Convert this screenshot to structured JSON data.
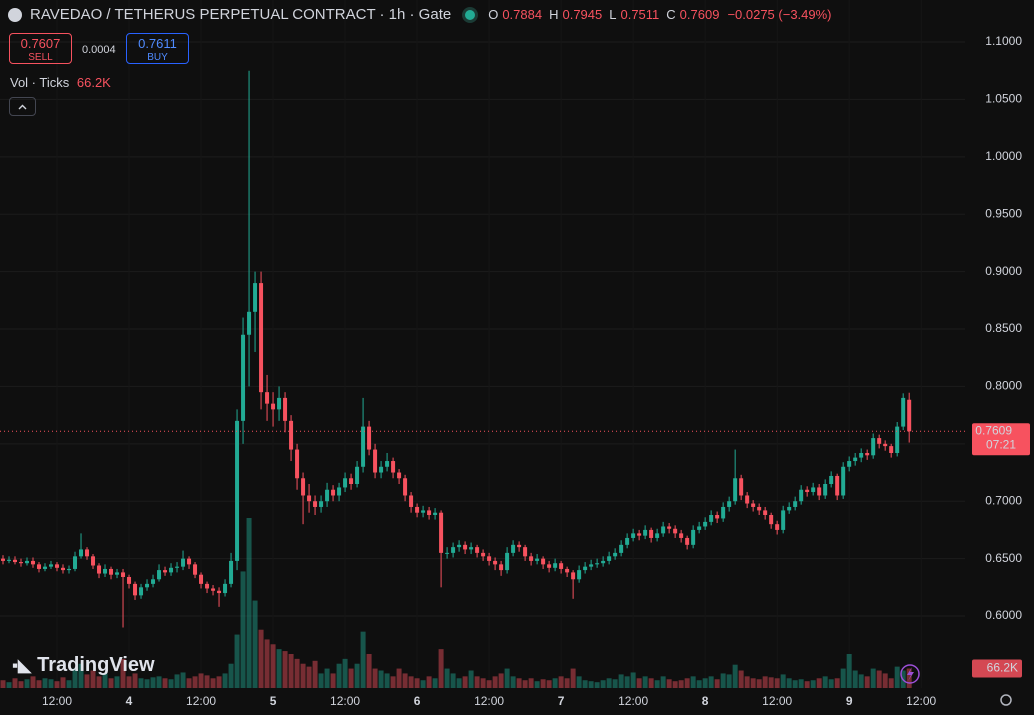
{
  "header": {
    "title": "RAVEDAO / TETHERUS PERPETUAL CONTRACT · 1h · Gate",
    "ohlc": [
      {
        "key": "O",
        "value": 0.7884
      },
      {
        "key": "H",
        "value": 0.7945
      },
      {
        "key": "L",
        "value": 0.7511
      },
      {
        "key": "C",
        "value": 0.7609
      }
    ],
    "change": "−0.0275 (−3.49%)",
    "sell": {
      "price": 0.7607,
      "label": "SELL"
    },
    "spread": 0.0004,
    "buy": {
      "price": 0.7611,
      "label": "BUY"
    },
    "volume_legend": {
      "label": "Vol · Ticks",
      "value": "66.2K"
    },
    "last_price_badge": {
      "price": 0.7609,
      "countdown": "07:21"
    },
    "volume_badge": "66.2K",
    "logo": "TradingView"
  },
  "chart_data": {
    "type": "candlestick",
    "up_color": "#22ab94",
    "down_color": "#f7525f",
    "grid": true,
    "x": [
      0,
      1,
      2,
      3,
      4,
      5,
      6,
      7,
      8,
      9,
      10,
      11,
      12,
      13,
      14,
      15,
      16,
      17,
      18,
      19,
      20,
      21,
      22,
      23,
      24,
      25,
      26,
      27,
      28,
      29,
      30,
      31,
      32,
      33,
      34,
      35,
      36,
      37,
      38,
      39,
      40,
      41,
      42,
      43,
      44,
      45,
      46,
      47,
      48,
      49,
      50,
      51,
      52,
      53,
      54,
      55,
      56,
      57,
      58,
      59,
      60,
      61,
      62,
      63,
      64,
      65,
      66,
      67,
      68,
      69,
      70,
      71,
      72,
      73,
      74,
      75,
      76,
      77,
      78,
      79,
      80,
      81,
      82,
      83,
      84,
      85,
      86,
      87,
      88,
      89,
      90,
      91,
      92,
      93,
      94,
      95,
      96,
      97,
      98,
      99,
      100,
      101,
      102,
      103,
      104,
      105,
      106,
      107,
      108,
      109,
      110,
      111,
      112,
      113,
      114,
      115,
      116,
      117,
      118,
      119,
      120,
      121,
      122,
      123,
      124,
      125,
      126,
      127,
      128,
      129,
      130,
      131,
      132,
      133,
      134,
      135,
      136,
      137,
      138,
      139,
      140,
      141,
      142,
      143,
      144,
      145,
      146,
      147,
      148,
      149,
      150,
      151
    ],
    "open": [
      0.65,
      0.648,
      0.649,
      0.647,
      0.646,
      0.648,
      0.645,
      0.641,
      0.643,
      0.645,
      0.642,
      0.64,
      0.641,
      0.652,
      0.658,
      0.652,
      0.644,
      0.637,
      0.641,
      0.636,
      0.638,
      0.634,
      0.628,
      0.618,
      0.625,
      0.628,
      0.632,
      0.64,
      0.638,
      0.642,
      0.643,
      0.65,
      0.645,
      0.636,
      0.628,
      0.624,
      0.622,
      0.62,
      0.628,
      0.648,
      0.77,
      0.845,
      0.865,
      0.89,
      0.795,
      0.785,
      0.78,
      0.79,
      0.77,
      0.745,
      0.72,
      0.705,
      0.7,
      0.695,
      0.7,
      0.71,
      0.705,
      0.712,
      0.72,
      0.715,
      0.73,
      0.765,
      0.745,
      0.725,
      0.73,
      0.735,
      0.725,
      0.72,
      0.705,
      0.695,
      0.69,
      0.692,
      0.688,
      0.69,
      0.655,
      0.655,
      0.66,
      0.662,
      0.658,
      0.66,
      0.655,
      0.652,
      0.648,
      0.645,
      0.64,
      0.655,
      0.662,
      0.66,
      0.652,
      0.648,
      0.65,
      0.645,
      0.642,
      0.646,
      0.641,
      0.638,
      0.632,
      0.64,
      0.643,
      0.645,
      0.646,
      0.648,
      0.652,
      0.655,
      0.662,
      0.668,
      0.672,
      0.67,
      0.675,
      0.668,
      0.672,
      0.678,
      0.676,
      0.672,
      0.668,
      0.662,
      0.675,
      0.678,
      0.682,
      0.688,
      0.685,
      0.695,
      0.7,
      0.72,
      0.705,
      0.698,
      0.695,
      0.692,
      0.688,
      0.68,
      0.675,
      0.692,
      0.695,
      0.7,
      0.71,
      0.708,
      0.712,
      0.705,
      0.715,
      0.722,
      0.705,
      0.73,
      0.735,
      0.738,
      0.742,
      0.74,
      0.755,
      0.75,
      0.748,
      0.742,
      0.765,
      0.7884
    ],
    "high": [
      0.653,
      0.652,
      0.652,
      0.65,
      0.651,
      0.651,
      0.647,
      0.646,
      0.648,
      0.647,
      0.645,
      0.644,
      0.656,
      0.672,
      0.66,
      0.654,
      0.646,
      0.645,
      0.643,
      0.641,
      0.641,
      0.636,
      0.63,
      0.628,
      0.632,
      0.636,
      0.645,
      0.643,
      0.646,
      0.647,
      0.657,
      0.652,
      0.647,
      0.638,
      0.63,
      0.627,
      0.625,
      0.632,
      0.655,
      0.78,
      0.86,
      1.075,
      0.9,
      0.9,
      0.81,
      0.795,
      0.8,
      0.795,
      0.775,
      0.75,
      0.725,
      0.715,
      0.705,
      0.705,
      0.716,
      0.714,
      0.716,
      0.725,
      0.724,
      0.735,
      0.79,
      0.77,
      0.75,
      0.735,
      0.742,
      0.738,
      0.728,
      0.723,
      0.708,
      0.698,
      0.696,
      0.695,
      0.694,
      0.692,
      0.66,
      0.664,
      0.666,
      0.665,
      0.664,
      0.662,
      0.658,
      0.655,
      0.651,
      0.648,
      0.66,
      0.666,
      0.665,
      0.662,
      0.655,
      0.654,
      0.652,
      0.648,
      0.65,
      0.648,
      0.643,
      0.64,
      0.644,
      0.647,
      0.649,
      0.65,
      0.652,
      0.656,
      0.659,
      0.666,
      0.672,
      0.676,
      0.675,
      0.679,
      0.677,
      0.676,
      0.682,
      0.681,
      0.679,
      0.675,
      0.67,
      0.679,
      0.682,
      0.686,
      0.692,
      0.691,
      0.699,
      0.704,
      0.745,
      0.723,
      0.708,
      0.701,
      0.698,
      0.695,
      0.69,
      0.683,
      0.696,
      0.699,
      0.704,
      0.714,
      0.713,
      0.716,
      0.715,
      0.719,
      0.726,
      0.724,
      0.734,
      0.739,
      0.742,
      0.746,
      0.745,
      0.759,
      0.758,
      0.753,
      0.75,
      0.769,
      0.794,
      0.7945
    ],
    "low": [
      0.645,
      0.646,
      0.645,
      0.643,
      0.644,
      0.642,
      0.638,
      0.639,
      0.641,
      0.639,
      0.637,
      0.637,
      0.639,
      0.65,
      0.649,
      0.641,
      0.633,
      0.634,
      0.632,
      0.633,
      0.59,
      0.624,
      0.614,
      0.615,
      0.622,
      0.625,
      0.63,
      0.635,
      0.635,
      0.638,
      0.64,
      0.641,
      0.633,
      0.624,
      0.62,
      0.618,
      0.608,
      0.617,
      0.625,
      0.64,
      0.75,
      0.8,
      0.83,
      0.78,
      0.77,
      0.765,
      0.77,
      0.76,
      0.735,
      0.71,
      0.68,
      0.69,
      0.688,
      0.69,
      0.695,
      0.7,
      0.7,
      0.708,
      0.71,
      0.712,
      0.725,
      0.74,
      0.72,
      0.72,
      0.726,
      0.72,
      0.715,
      0.7,
      0.69,
      0.686,
      0.686,
      0.684,
      0.684,
      0.625,
      0.65,
      0.651,
      0.656,
      0.654,
      0.654,
      0.651,
      0.648,
      0.644,
      0.64,
      0.635,
      0.637,
      0.652,
      0.656,
      0.648,
      0.644,
      0.645,
      0.641,
      0.638,
      0.639,
      0.637,
      0.634,
      0.615,
      0.629,
      0.637,
      0.64,
      0.642,
      0.643,
      0.645,
      0.649,
      0.652,
      0.659,
      0.665,
      0.666,
      0.667,
      0.664,
      0.665,
      0.669,
      0.672,
      0.668,
      0.664,
      0.658,
      0.659,
      0.672,
      0.675,
      0.679,
      0.681,
      0.682,
      0.691,
      0.697,
      0.701,
      0.694,
      0.691,
      0.688,
      0.684,
      0.676,
      0.671,
      0.672,
      0.689,
      0.692,
      0.697,
      0.704,
      0.705,
      0.701,
      0.702,
      0.712,
      0.701,
      0.702,
      0.726,
      0.731,
      0.734,
      0.736,
      0.737,
      0.746,
      0.744,
      0.738,
      0.739,
      0.762,
      0.7511
    ],
    "close": [
      0.648,
      0.649,
      0.647,
      0.646,
      0.648,
      0.645,
      0.641,
      0.643,
      0.645,
      0.642,
      0.64,
      0.641,
      0.652,
      0.658,
      0.652,
      0.644,
      0.637,
      0.641,
      0.636,
      0.638,
      0.634,
      0.628,
      0.618,
      0.625,
      0.628,
      0.632,
      0.64,
      0.638,
      0.642,
      0.643,
      0.65,
      0.645,
      0.636,
      0.628,
      0.624,
      0.622,
      0.62,
      0.628,
      0.648,
      0.77,
      0.845,
      0.865,
      0.89,
      0.795,
      0.785,
      0.78,
      0.79,
      0.77,
      0.745,
      0.72,
      0.705,
      0.7,
      0.695,
      0.7,
      0.71,
      0.705,
      0.712,
      0.72,
      0.715,
      0.73,
      0.765,
      0.745,
      0.725,
      0.73,
      0.735,
      0.725,
      0.72,
      0.705,
      0.695,
      0.69,
      0.692,
      0.688,
      0.69,
      0.655,
      0.655,
      0.66,
      0.662,
      0.658,
      0.66,
      0.655,
      0.652,
      0.648,
      0.645,
      0.64,
      0.655,
      0.662,
      0.66,
      0.652,
      0.648,
      0.65,
      0.645,
      0.642,
      0.646,
      0.641,
      0.638,
      0.632,
      0.64,
      0.643,
      0.645,
      0.646,
      0.648,
      0.652,
      0.655,
      0.662,
      0.668,
      0.672,
      0.67,
      0.675,
      0.668,
      0.672,
      0.678,
      0.676,
      0.672,
      0.668,
      0.662,
      0.675,
      0.678,
      0.682,
      0.688,
      0.685,
      0.695,
      0.7,
      0.72,
      0.705,
      0.698,
      0.695,
      0.692,
      0.688,
      0.68,
      0.675,
      0.692,
      0.695,
      0.7,
      0.71,
      0.708,
      0.712,
      0.705,
      0.715,
      0.722,
      0.705,
      0.73,
      0.735,
      0.738,
      0.742,
      0.74,
      0.755,
      0.75,
      0.748,
      0.742,
      0.765,
      0.79,
      0.7609
    ],
    "volume": [
      26400,
      19800,
      33000,
      23100,
      29700,
      39600,
      26400,
      33000,
      29700,
      23100,
      36300,
      26400,
      66000,
      82500,
      46200,
      59400,
      39600,
      49500,
      33000,
      39600,
      99000,
      39600,
      49500,
      33000,
      29700,
      36300,
      39600,
      33000,
      29700,
      46200,
      52800,
      33000,
      39600,
      49500,
      42900,
      33000,
      39600,
      49500,
      82500,
      181500,
      396000,
      577500,
      297000,
      198000,
      165000,
      148500,
      132000,
      125400,
      115500,
      99000,
      82500,
      72600,
      92400,
      49500,
      66000,
      49500,
      82500,
      99000,
      66000,
      82500,
      191400,
      115500,
      66000,
      59400,
      49500,
      39600,
      66000,
      49500,
      39600,
      33000,
      26400,
      39600,
      33000,
      132000,
      66000,
      49500,
      33000,
      39600,
      59400,
      39600,
      33000,
      26400,
      39600,
      49500,
      66000,
      39600,
      33000,
      26400,
      33000,
      23100,
      29700,
      26400,
      33000,
      39600,
      33000,
      66000,
      39600,
      26400,
      23100,
      19800,
      26400,
      33000,
      29700,
      46200,
      39600,
      52800,
      33000,
      39600,
      33000,
      26400,
      39600,
      29700,
      23100,
      26400,
      33000,
      39600,
      26400,
      33000,
      39600,
      29700,
      49500,
      46200,
      79200,
      59400,
      39600,
      33000,
      29700,
      39600,
      36300,
      33000,
      46200,
      33000,
      26400,
      29700,
      23100,
      26400,
      33000,
      39600,
      29700,
      33000,
      66000,
      115500,
      59400,
      46200,
      39600,
      66000,
      59400,
      49500,
      33000,
      72600,
      59400,
      66200
    ],
    "xlim": [
      -0.5,
      160.3
    ],
    "xticks": [
      {
        "value": 9,
        "label": "12:00"
      },
      {
        "value": 21,
        "label": "4"
      },
      {
        "value": 33,
        "label": "12:00"
      },
      {
        "value": 45,
        "label": "5"
      },
      {
        "value": 57,
        "label": "12:00"
      },
      {
        "value": 69,
        "label": "6"
      },
      {
        "value": 81,
        "label": "12:00"
      },
      {
        "value": 93,
        "label": "7"
      },
      {
        "value": 105,
        "label": "12:00"
      },
      {
        "value": 117,
        "label": "8"
      },
      {
        "value": 129,
        "label": "12:00"
      },
      {
        "value": 141,
        "label": "9"
      },
      {
        "value": 153,
        "label": "12:00"
      }
    ],
    "ylim": [
      0.5373,
      1.1366
    ],
    "yticks": [
      {
        "value": 0.6,
        "label": "0.6000"
      },
      {
        "value": 0.65,
        "label": "0.6500"
      },
      {
        "value": 0.7,
        "label": "0.7000"
      },
      {
        "value": 0.75,
        "label": "0.7500"
      },
      {
        "value": 0.8,
        "label": "0.8000"
      },
      {
        "value": 0.85,
        "label": "0.8500"
      },
      {
        "value": 0.9,
        "label": "0.9000"
      },
      {
        "value": 0.95,
        "label": "0.9500"
      },
      {
        "value": 1.0,
        "label": "1.0000"
      },
      {
        "value": 1.05,
        "label": "1.0500"
      },
      {
        "value": 1.1,
        "label": "1.1000"
      }
    ]
  }
}
